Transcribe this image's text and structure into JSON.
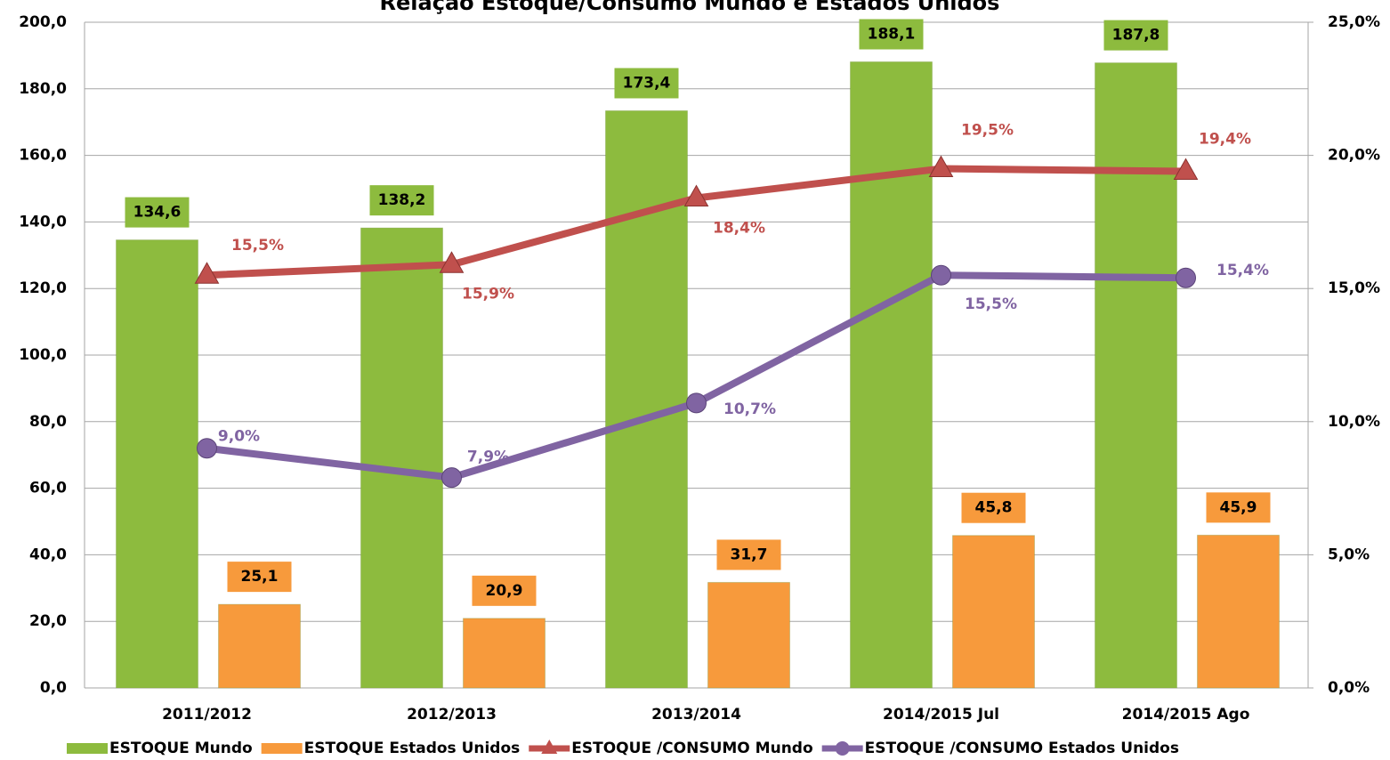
{
  "chart_data": {
    "type": "bar-line",
    "title": "Relação Estoque/Consumo Mundo e Estados Unidos",
    "categories": [
      "2011/2012",
      "2012/2013",
      "2013/2014",
      "2014/2015 Jul",
      "2014/2015 Ago"
    ],
    "series": [
      {
        "name": "ESTOQUE Mundo",
        "type": "bar",
        "color": "#8dbb3e",
        "axis": "y",
        "values": [
          134.6,
          138.2,
          173.4,
          188.1,
          187.8
        ],
        "value_labels": [
          "134,6",
          "138,2",
          "173,4",
          "188,1",
          "187,8"
        ]
      },
      {
        "name": "ESTOQUE Estados Unidos",
        "type": "bar",
        "color": "#f79a3c",
        "axis": "y",
        "values": [
          25.1,
          20.9,
          31.7,
          45.8,
          45.9
        ],
        "value_labels": [
          "25,1",
          "20,9",
          "31,7",
          "45,8",
          "45,9"
        ]
      },
      {
        "name": "ESTOQUE /CONSUMO Mundo",
        "type": "line",
        "color": "#c0504d",
        "axis": "y2",
        "values": [
          15.5,
          15.9,
          18.4,
          19.5,
          19.4
        ],
        "value_labels": [
          "15,5%",
          "15,9%",
          "18,4%",
          "19,5%",
          "19,4%"
        ]
      },
      {
        "name": "ESTOQUE /CONSUMO Estados Unidos",
        "type": "line",
        "color": "#8064a2",
        "axis": "y2",
        "values": [
          9.0,
          7.9,
          10.7,
          15.5,
          15.4
        ],
        "value_labels": [
          "9,0%",
          "7,9%",
          "10,7%",
          "15,5%",
          "15,4%"
        ]
      }
    ],
    "ylim": [
      0,
      200
    ],
    "yticks": [
      {
        "value": 0,
        "label": "0,0"
      },
      {
        "value": 20,
        "label": "20,0"
      },
      {
        "value": 40,
        "label": "40,0"
      },
      {
        "value": 60,
        "label": "60,0"
      },
      {
        "value": 80,
        "label": "80,0"
      },
      {
        "value": 100,
        "label": "100,0"
      },
      {
        "value": 120,
        "label": "120,0"
      },
      {
        "value": 140,
        "label": "140,0"
      },
      {
        "value": 160,
        "label": "160,0"
      },
      {
        "value": 180,
        "label": "180,0"
      },
      {
        "value": 200,
        "label": "200,0"
      }
    ],
    "y2lim": [
      0,
      25
    ],
    "y2ticks": [
      {
        "value": 0,
        "label": "0,0%"
      },
      {
        "value": 5,
        "label": "5,0%"
      },
      {
        "value": 10,
        "label": "10,0%"
      },
      {
        "value": 15,
        "label": "15,0%"
      },
      {
        "value": 20,
        "label": "20,0%"
      },
      {
        "value": 25,
        "label": "25,0%"
      }
    ],
    "grid": true,
    "legend": "bottom"
  }
}
